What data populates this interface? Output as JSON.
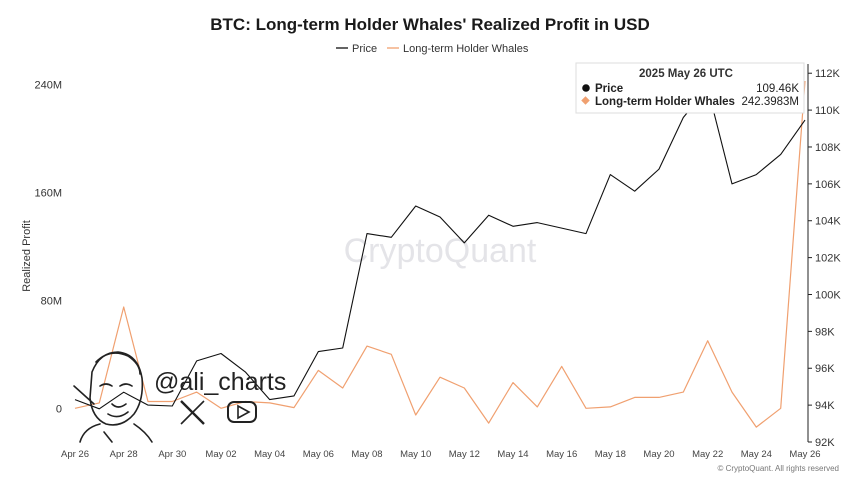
{
  "chart_data": {
    "type": "line",
    "title": "BTC: Long-term Holder Whales' Realized Profit in USD",
    "ylabel": "Realized Profit",
    "legend_position": "top-center",
    "grid": false,
    "x": [
      "Apr 26",
      "Apr 27",
      "Apr 28",
      "Apr 29",
      "Apr 30",
      "May 01",
      "May 02",
      "May 03",
      "May 04",
      "May 05",
      "May 06",
      "May 07",
      "May 08",
      "May 09",
      "May 10",
      "May 11",
      "May 12",
      "May 13",
      "May 14",
      "May 15",
      "May 16",
      "May 17",
      "May 18",
      "May 19",
      "May 20",
      "May 21",
      "May 22",
      "May 23",
      "May 24",
      "May 25",
      "May 26"
    ],
    "x_ticks": [
      "Apr 26",
      "Apr 28",
      "Apr 30",
      "May 02",
      "May 04",
      "May 06",
      "May 08",
      "May 10",
      "May 12",
      "May 14",
      "May 16",
      "May 18",
      "May 20",
      "May 22",
      "May 24",
      "May 26"
    ],
    "series": [
      {
        "name": "Price",
        "axis": "right",
        "color": "#111111",
        "values": [
          94300,
          93800,
          94700,
          94000,
          93950,
          96400,
          96800,
          95800,
          94300,
          94500,
          96900,
          97100,
          103300,
          103100,
          104800,
          104200,
          102800,
          104300,
          103700,
          103900,
          103600,
          103300,
          106500,
          105600,
          106800,
          109600,
          111200,
          106000,
          106500,
          107600,
          109460
        ]
      },
      {
        "name": "Long-term Holder Whales",
        "axis": "left",
        "color": "#f0a070",
        "values": [
          0,
          4000000,
          75000000,
          5000000,
          5000000,
          12000000,
          0,
          5000000,
          4000000,
          500000,
          28000000,
          15000000,
          46000000,
          40000000,
          -5000000,
          23000000,
          15000000,
          -11000000,
          19000000,
          1000000,
          31000000,
          0,
          1000000,
          8000000,
          8000000,
          12000000,
          50000000,
          12000000,
          -14000000,
          0,
          242398300
        ]
      }
    ],
    "left_axis": {
      "min": -25000000,
      "max": 255000000,
      "ticks": [
        0,
        80000000,
        160000000,
        240000000
      ],
      "tick_labels": [
        "0",
        "80M",
        "160M",
        "240M"
      ]
    },
    "right_axis": {
      "min": 92000,
      "max": 112500,
      "ticks": [
        92000,
        94000,
        96000,
        98000,
        100000,
        102000,
        104000,
        106000,
        108000,
        110000,
        112000
      ],
      "tick_labels": [
        "92K",
        "94K",
        "96K",
        "98K",
        "100K",
        "102K",
        "104K",
        "106K",
        "108K",
        "110K",
        "112K"
      ]
    },
    "tooltip": {
      "date": "2025 May 26 UTC",
      "rows": [
        {
          "label": "Price",
          "value": "109.46K",
          "color": "#111111",
          "marker": "circle"
        },
        {
          "label": "Long-term Holder Whales",
          "value": "242.3983M",
          "color": "#f0a070",
          "marker": "diamond"
        }
      ]
    }
  },
  "watermark": "CryptoQuant",
  "copyright": "© CryptoQuant. All rights reserved",
  "social": {
    "handle": "@ali_charts",
    "icons": [
      "x-logo-icon",
      "youtube-icon"
    ]
  }
}
